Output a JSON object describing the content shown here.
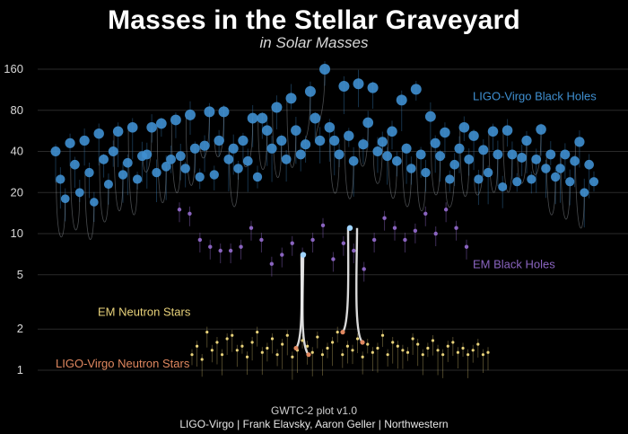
{
  "chart_data": {
    "type": "scatter",
    "title": "Masses in the Stellar Graveyard",
    "subtitle": "in Solar Masses",
    "yscale": "log",
    "ylim": [
      0.7,
      200
    ],
    "yticks": [
      1,
      2,
      5,
      10,
      20,
      40,
      80,
      160
    ],
    "grid": true,
    "series": [
      {
        "name": "LIGO-Virgo Black Holes",
        "color": "#3f8fd0",
        "values": [
          40,
          25,
          18,
          46,
          32,
          20,
          48,
          28,
          17,
          54,
          35,
          23,
          40,
          56,
          27,
          33,
          60,
          25,
          37,
          38,
          60,
          28,
          64,
          31,
          35,
          68,
          37,
          30,
          74,
          42,
          26,
          44,
          78,
          27,
          48,
          78,
          35,
          42,
          30,
          48,
          34,
          70,
          26,
          70,
          57,
          42,
          84,
          48,
          35,
          98,
          57,
          38,
          45,
          110,
          70,
          48,
          160,
          60,
          48,
          38,
          120,
          52,
          34,
          125,
          45,
          65,
          117,
          40,
          47,
          37,
          56,
          34,
          95,
          42,
          30,
          114,
          38,
          28,
          72,
          46,
          37,
          55,
          25,
          32,
          42,
          60,
          35,
          52,
          25,
          41,
          28,
          56,
          38,
          22,
          57,
          38,
          24,
          36,
          48,
          25,
          35,
          58,
          30,
          38,
          26,
          30,
          38,
          24,
          34,
          47,
          20,
          32,
          24
        ]
      },
      {
        "name": "EM Black Holes",
        "values": [
          15,
          14,
          9,
          8,
          7.5,
          7.5,
          8,
          11,
          9,
          6,
          7,
          8.5,
          7,
          9,
          11.5,
          6.5,
          8.5,
          7.5,
          5.5,
          9,
          13,
          11,
          9,
          10.5,
          14,
          10,
          15,
          11,
          8
        ],
        "color": "#8a64c0"
      },
      {
        "name": "EM Neutron Stars",
        "color": "#e8d27a",
        "values": [
          1.3,
          1.5,
          1.2,
          1.9,
          1.4,
          1.6,
          1.3,
          1.7,
          1.8,
          1.4,
          1.5,
          1.25,
          1.6,
          1.9,
          1.35,
          1.45,
          1.7,
          1.3,
          1.55,
          1.8,
          1.25,
          1.4,
          1.65,
          1.5,
          1.35,
          1.75,
          1.3,
          1.45,
          1.6,
          1.9,
          1.3,
          1.5,
          1.4,
          1.7,
          1.25,
          1.55,
          1.35,
          1.45,
          1.8,
          1.3,
          1.6,
          1.5,
          1.4,
          1.35,
          1.7,
          1.55,
          1.3,
          1.45,
          1.65,
          1.4,
          1.3,
          1.5,
          1.6,
          1.35,
          1.45,
          1.3,
          1.4,
          1.55,
          1.3,
          1.35
        ]
      },
      {
        "name": "LIGO-Virgo Neutron Stars",
        "color": "#e08860",
        "values": [
          1.45,
          1.3,
          1.9,
          1.6
        ]
      }
    ],
    "annotations": [
      "GWTC-2 plot v1.0",
      "LIGO-Virgo | Frank Elavsky, Aaron Geller | Northwestern"
    ]
  }
}
